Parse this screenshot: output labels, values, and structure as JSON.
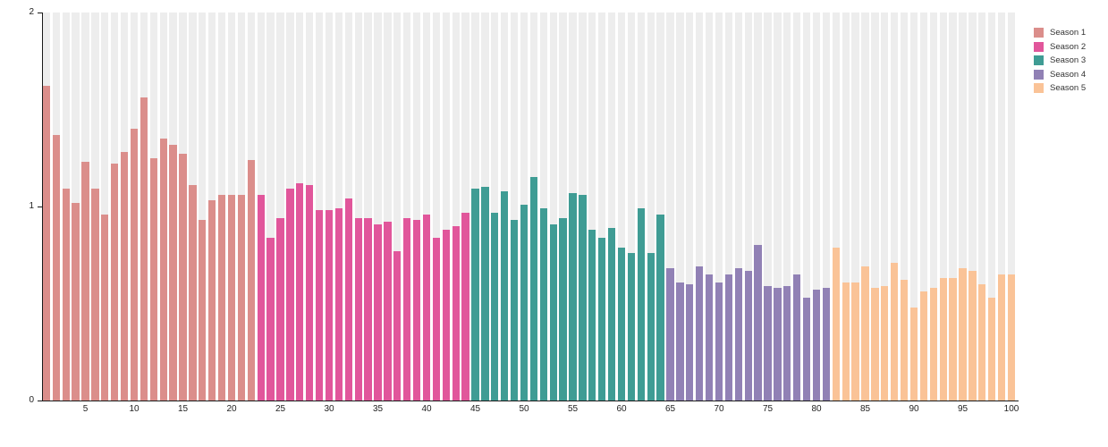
{
  "chart_data": {
    "type": "bar",
    "title": "",
    "xlabel": "",
    "ylabel": "",
    "ylim": [
      0,
      2
    ],
    "yticks": [
      0,
      1,
      2
    ],
    "xticks": [
      5,
      10,
      15,
      20,
      25,
      30,
      35,
      40,
      45,
      50,
      55,
      60,
      65,
      70,
      75,
      80,
      85,
      90,
      95,
      100
    ],
    "x_range": [
      1,
      100
    ],
    "grid": "off",
    "background_column_stripes": true,
    "stripe_color": "#ededed",
    "axis_color": "#1a1a1a",
    "legend_position": "top-right",
    "series": [
      {
        "name": "Season 1",
        "color": "#db8e8b",
        "start": 1,
        "end": 22,
        "values": [
          1.62,
          1.37,
          1.09,
          1.02,
          1.23,
          1.09,
          0.96,
          1.22,
          1.28,
          1.4,
          1.56,
          1.25,
          1.35,
          1.32,
          1.27,
          1.11,
          0.93,
          1.03,
          1.06,
          1.06,
          1.06,
          1.24
        ]
      },
      {
        "name": "Season 2",
        "color": "#e1569b",
        "start": 23,
        "end": 44,
        "values": [
          1.06,
          0.84,
          0.94,
          1.09,
          1.12,
          1.11,
          0.98,
          0.98,
          0.99,
          1.04,
          0.94,
          0.94,
          0.91,
          0.92,
          0.77,
          0.94,
          0.93,
          0.96,
          0.84,
          0.88,
          0.9,
          0.97
        ]
      },
      {
        "name": "Season 3",
        "color": "#3f9c94",
        "start": 45,
        "end": 64,
        "values": [
          1.09,
          1.1,
          0.97,
          1.08,
          0.93,
          1.01,
          1.15,
          0.99,
          0.91,
          0.94,
          1.07,
          1.06,
          0.88,
          0.84,
          0.89,
          0.79,
          0.76,
          0.99,
          0.76,
          0.96
        ]
      },
      {
        "name": "Season 4",
        "color": "#9181b5",
        "start": 65,
        "end": 81,
        "values": [
          0.68,
          0.61,
          0.6,
          0.69,
          0.65,
          0.61,
          0.65,
          0.68,
          0.67,
          0.8,
          0.59,
          0.58,
          0.59,
          0.65,
          0.53,
          0.57,
          0.58
        ]
      },
      {
        "name": "Season 5",
        "color": "#fac397",
        "start": 82,
        "end": 100,
        "values": [
          0.79,
          0.61,
          0.61,
          0.69,
          0.58,
          0.59,
          0.71,
          0.62,
          0.48,
          0.56,
          0.58,
          0.63,
          0.63,
          0.68,
          0.67,
          0.6,
          0.53,
          0.65,
          0.65
        ]
      }
    ]
  }
}
